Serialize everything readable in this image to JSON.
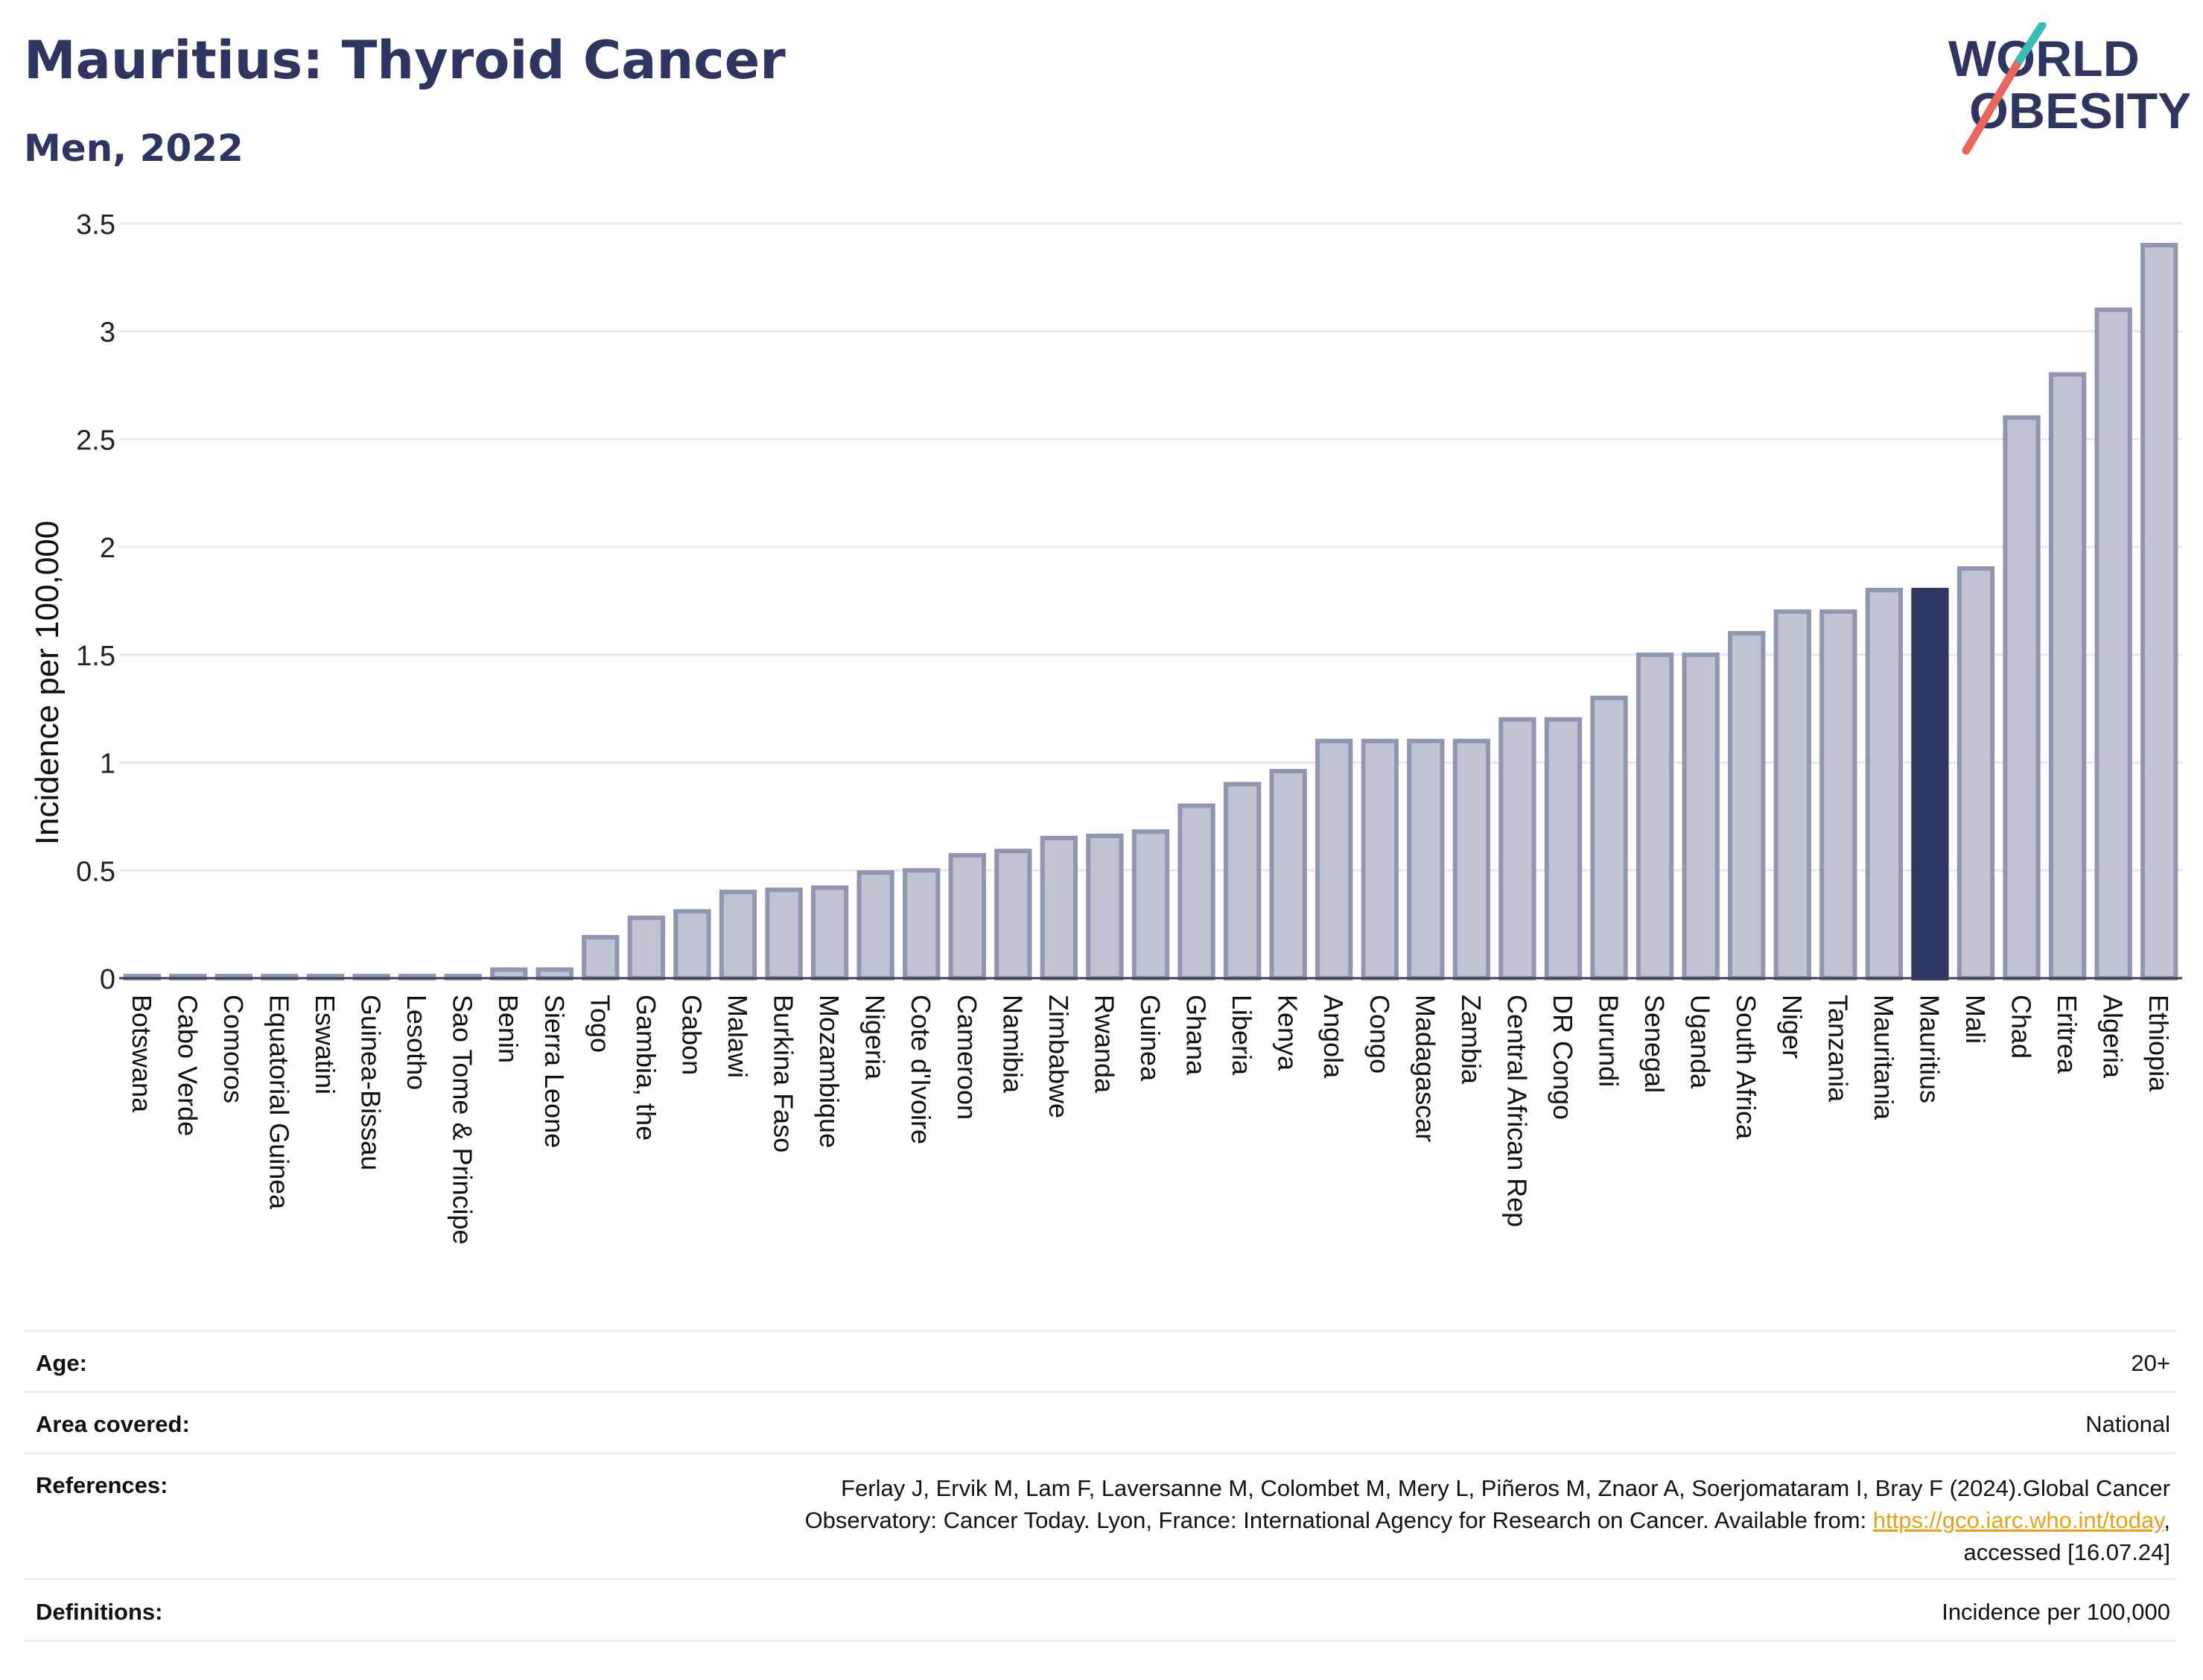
{
  "header": {
    "title": "Mauritius: Thyroid Cancer",
    "subtitle": "Men, 2022"
  },
  "logo": {
    "line1": "WORLD",
    "line2": "OBESITY",
    "colors": {
      "text": "#2d3560",
      "slash_red": "#e8675a",
      "slash_teal": "#3bbcb5"
    }
  },
  "chart_data": {
    "type": "bar",
    "title": "Mauritius: Thyroid Cancer",
    "subtitle": "Men, 2022",
    "xlabel": "",
    "ylabel": "Incidence per 100,000",
    "ylim": [
      0,
      3.5
    ],
    "yticks": [
      "0",
      "0.5",
      "1",
      "1.5",
      "2",
      "2.5",
      "3",
      "3.5"
    ],
    "grid": true,
    "highlight": "Mauritius",
    "colors": {
      "bar": "#bfc3d2",
      "bar_border": "#8f96b0",
      "highlight": "#2d3560",
      "grid": "#e6e8ef",
      "axis": "#3a3f55"
    },
    "categories": [
      "Botswana",
      "Cabo Verde",
      "Comoros",
      "Equatorial Guinea",
      "Eswatini",
      "Guinea-Bissau",
      "Lesotho",
      "Sao Tome & Principe",
      "Benin",
      "Sierra Leone",
      "Togo",
      "Gambia, the",
      "Gabon",
      "Malawi",
      "Burkina Faso",
      "Mozambique",
      "Nigeria",
      "Cote d'Ivoire",
      "Cameroon",
      "Namibia",
      "Zimbabwe",
      "Rwanda",
      "Guinea",
      "Ghana",
      "Liberia",
      "Kenya",
      "Angola",
      "Congo",
      "Madagascar",
      "Zambia",
      "Central African Rep",
      "DR Congo",
      "Burundi",
      "Senegal",
      "Uganda",
      "South Africa",
      "Niger",
      "Tanzania",
      "Mauritania",
      "Mauritius",
      "Mali",
      "Chad",
      "Eritrea",
      "Algeria",
      "Ethiopia"
    ],
    "values": [
      0.01,
      0.01,
      0.01,
      0.01,
      0.01,
      0.01,
      0.01,
      0.01,
      0.04,
      0.04,
      0.19,
      0.28,
      0.31,
      0.4,
      0.41,
      0.42,
      0.49,
      0.5,
      0.57,
      0.59,
      0.65,
      0.66,
      0.68,
      0.8,
      0.9,
      0.96,
      1.1,
      1.1,
      1.1,
      1.1,
      1.2,
      1.2,
      1.3,
      1.5,
      1.5,
      1.6,
      1.7,
      1.7,
      1.8,
      1.8,
      1.9,
      2.6,
      2.8,
      3.1,
      3.4
    ]
  },
  "info": {
    "age_label": "Age:",
    "age_value": "20+",
    "area_label": "Area covered:",
    "area_value": "National",
    "references_label": "References:",
    "references_line1": "Ferlay J, Ervik M, Lam F, Laversanne M, Colombet M, Mery L, Piñeros M, Znaor A, Soerjomataram I, Bray F (2024).Global Cancer",
    "references_line2_pre": "Observatory: Cancer Today. Lyon, France: International Agency for Research on Cancer. Available from: ",
    "references_link": "https://gco.iarc.who.int/today",
    "references_line2_post": ",",
    "references_line3": "accessed [16.07.24]",
    "definitions_label": "Definitions:",
    "definitions_value": "Incidence per 100,000"
  }
}
